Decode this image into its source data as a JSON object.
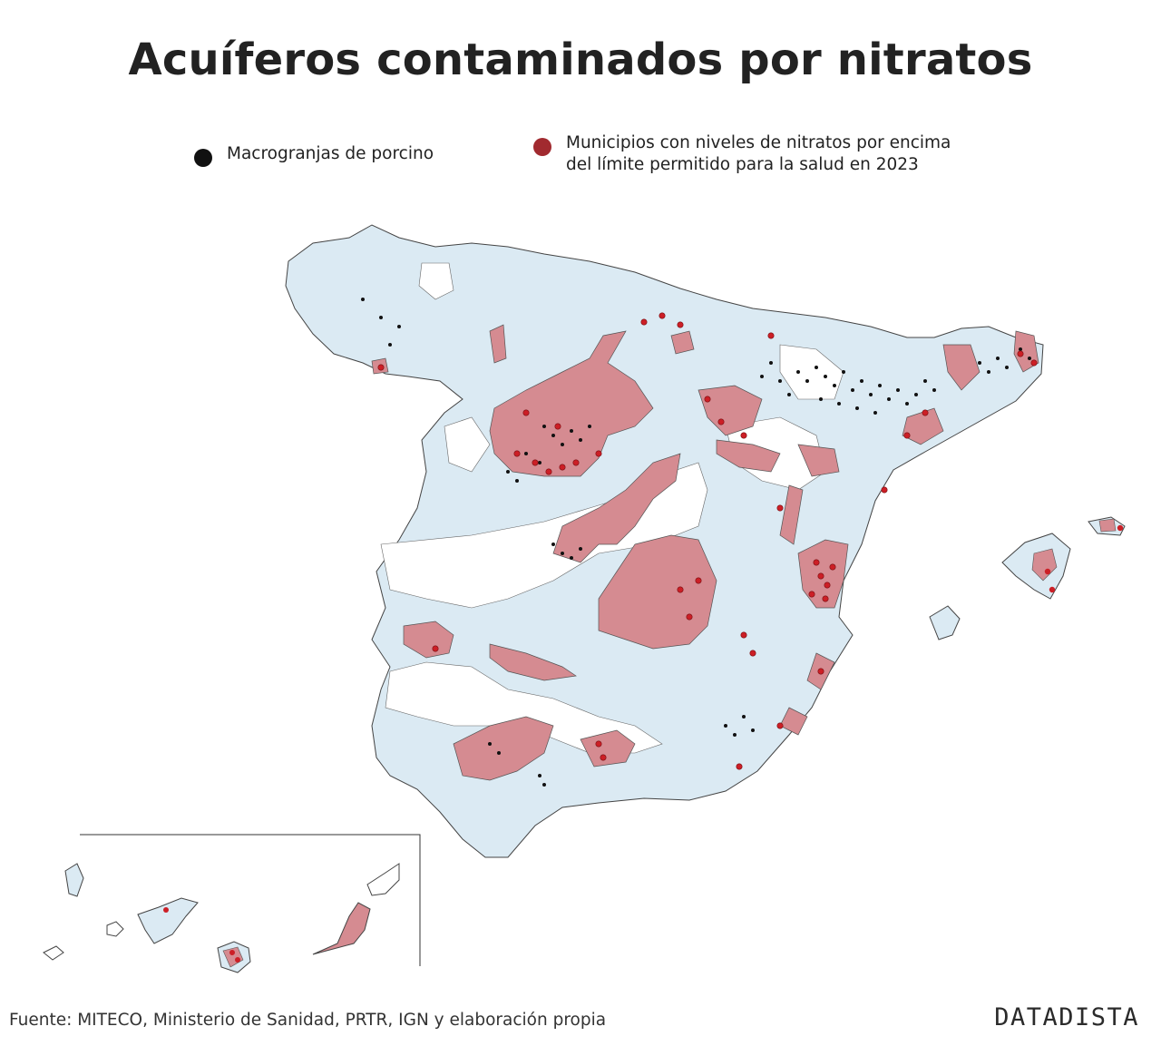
{
  "title": "Acuíferos contaminados por nitratos",
  "legend": {
    "pig_farms": {
      "label": "Macrogranjas de porcino",
      "color": "#111111"
    },
    "municipalities": {
      "label_line1": "Municipios con niveles de nitratos por encima",
      "label_line2": "del límite permitido para la salud en 2023",
      "color": "#a12a2f"
    }
  },
  "colors": {
    "aquifer_default": "#dbeaf3",
    "aquifer_contaminated": "#d58b91",
    "land": "#ffffff",
    "border": "#444444",
    "municipality_point": "#cc1f26",
    "pig_farm_point": "#111111"
  },
  "source": "Fuente: MITECO, Ministerio de Sanidad, PRTR, IGN y elaboración propia",
  "brand": "DATADISTA"
}
